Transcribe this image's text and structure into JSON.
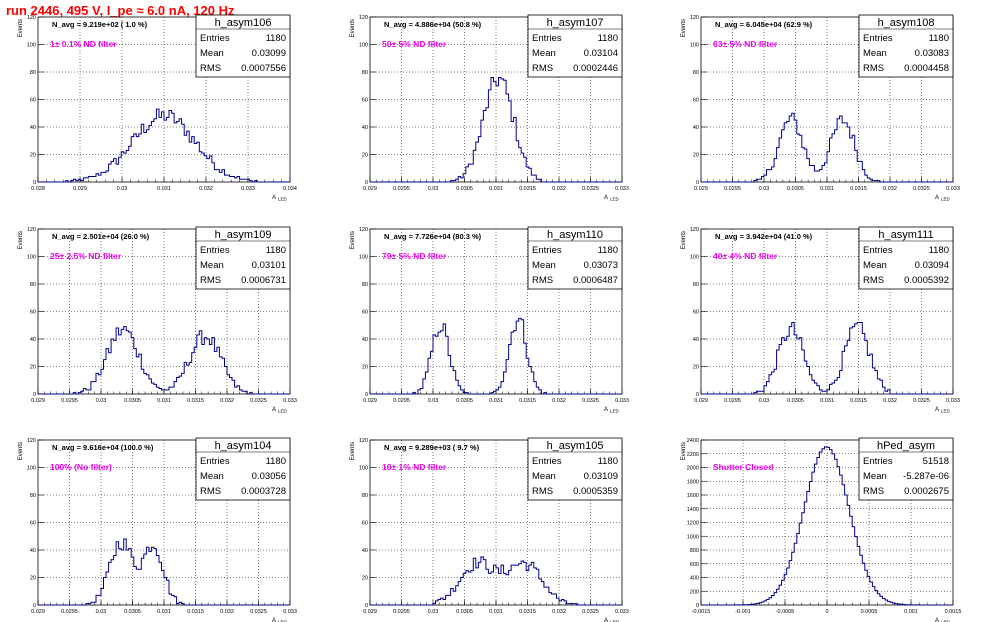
{
  "page_title": "run 2446,   495 V, I_pe ≈ 6.0 nA, 120 Hz",
  "stats_labels": {
    "entries": "Entries",
    "mean": "Mean",
    "rms": "RMS"
  },
  "y_axis_label": "Events",
  "x_axis_label": "A",
  "x_axis_label_sub": "LED",
  "colors": {
    "histogram": "#00008b",
    "filter_text": "#ee00ee",
    "title": "#ff0000"
  },
  "chart_data": [
    {
      "type": "histogram",
      "name": "h_asym106",
      "navg": "N_avg = 9.219e+02 ( 1.0 %)",
      "filter": "1± 0.1% ND filter",
      "entries": "1180",
      "mean": "0.03099",
      "rms": "0.0007556",
      "xlim": [
        0.028,
        0.034
      ],
      "ylim": [
        0,
        120
      ],
      "xticks": [
        "0.028",
        "0.029",
        "0.03",
        "0.031",
        "0.032",
        "0.033",
        "0.034"
      ],
      "yticks": [
        "0",
        "20",
        "40",
        "60",
        "80",
        "100",
        "120"
      ],
      "peaks": [
        [
          0.031,
          48,
          0.00075
        ]
      ],
      "count": 1180
    },
    {
      "type": "histogram",
      "name": "h_asym107",
      "navg": "N_avg = 4.886e+04 (50.8 %)",
      "filter": "50± 5% ND filter",
      "entries": "1180",
      "mean": "0.03104",
      "rms": "0.0002446",
      "xlim": [
        0.029,
        0.033
      ],
      "ylim": [
        0,
        120
      ],
      "xticks": [
        "0.029",
        "0.0295",
        "0.03",
        "0.0305",
        "0.031",
        "0.0315",
        "0.032",
        "0.0325",
        "0.033"
      ],
      "yticks": [
        "0",
        "20",
        "40",
        "60",
        "80",
        "100",
        "120"
      ],
      "peaks": [
        [
          0.03104,
          75,
          0.00024
        ]
      ],
      "count": 1180
    },
    {
      "type": "histogram",
      "name": "h_asym108",
      "navg": "N_avg = 6.045e+04 (62.9 %)",
      "filter": "63± 5% ND filter",
      "entries": "1180",
      "mean": "0.03083",
      "rms": "0.0004458",
      "xlim": [
        0.029,
        0.033
      ],
      "ylim": [
        0,
        120
      ],
      "xticks": [
        "0.029",
        "0.0295",
        "0.03",
        "0.0305",
        "0.031",
        "0.0315",
        "0.032",
        "0.0325",
        "0.033"
      ],
      "yticks": [
        "0",
        "20",
        "40",
        "60",
        "80",
        "100",
        "120"
      ],
      "peaks": [
        [
          0.03043,
          46,
          0.00019
        ],
        [
          0.03125,
          45,
          0.00019
        ]
      ],
      "count": 1180
    },
    {
      "type": "histogram",
      "name": "h_asym109",
      "navg": "N_avg = 2.501e+04 (26.0 %)",
      "filter": "25± 2.5% ND filter",
      "entries": "1180",
      "mean": "0.03101",
      "rms": "0.0006731",
      "xlim": [
        0.029,
        0.033
      ],
      "ylim": [
        0,
        120
      ],
      "xticks": [
        "0.029",
        "0.0295",
        "0.03",
        "0.0305",
        "0.031",
        "0.0315",
        "0.032",
        "0.0325",
        "0.033"
      ],
      "yticks": [
        "0",
        "20",
        "40",
        "60",
        "80",
        "100",
        "120"
      ],
      "peaks": [
        [
          0.03035,
          47,
          0.00025
        ],
        [
          0.03165,
          42,
          0.00025
        ]
      ],
      "count": 1180
    },
    {
      "type": "histogram",
      "name": "h_asym110",
      "navg": "N_avg = 7.726e+04 (80.3 %)",
      "filter": "79± 5% ND filter",
      "entries": "1180",
      "mean": "0.03073",
      "rms": "0.0006487",
      "xlim": [
        0.029,
        0.033
      ],
      "ylim": [
        0,
        120
      ],
      "xticks": [
        "0.029",
        "0.0295",
        "0.03",
        "0.0305",
        "0.031",
        "0.0315",
        "0.032",
        "0.0325",
        "0.033"
      ],
      "yticks": [
        "0",
        "20",
        "40",
        "60",
        "80",
        "100",
        "120"
      ],
      "peaks": [
        [
          0.03012,
          50,
          0.00014
        ],
        [
          0.03135,
          55,
          0.00014
        ]
      ],
      "count": 1180
    },
    {
      "type": "histogram",
      "name": "h_asym111",
      "navg": "N_avg = 3.942e+04 (41.0 %)",
      "filter": "40± 4% ND filter",
      "entries": "1180",
      "mean": "0.03094",
      "rms": "0.0005392",
      "xlim": [
        0.029,
        0.033
      ],
      "ylim": [
        0,
        120
      ],
      "xticks": [
        "0.029",
        "0.0295",
        "0.03",
        "0.0305",
        "0.031",
        "0.0315",
        "0.032",
        "0.0325",
        "0.033"
      ],
      "yticks": [
        "0",
        "20",
        "40",
        "60",
        "80",
        "100",
        "120"
      ],
      "peaks": [
        [
          0.03043,
          47,
          0.0002
        ],
        [
          0.03148,
          48,
          0.0002
        ]
      ],
      "count": 1180
    },
    {
      "type": "histogram",
      "name": "h_asym104",
      "navg": "N_avg = 9.616e+04 (100.0 %)",
      "filter": "100% (No filter)",
      "entries": "1180",
      "mean": "0.03056",
      "rms": "0.0003728",
      "xlim": [
        0.029,
        0.033
      ],
      "ylim": [
        0,
        120
      ],
      "xticks": [
        "0.029",
        "0.0295",
        "0.03",
        "0.0305",
        "0.031",
        "0.0315",
        "0.032",
        "0.0325",
        "0.033"
      ],
      "yticks": [
        "0",
        "20",
        "40",
        "60",
        "80",
        "100",
        "120"
      ],
      "peaks": [
        [
          0.03032,
          46,
          0.00018
        ],
        [
          0.03083,
          44,
          0.00016
        ]
      ],
      "count": 1180
    },
    {
      "type": "histogram",
      "name": "h_asym105",
      "navg": "N_avg = 9.289e+03 ( 9.7 %)",
      "filter": "10± 1% ND filter",
      "entries": "1180",
      "mean": "0.03109",
      "rms": "0.0005359",
      "xlim": [
        0.029,
        0.033
      ],
      "ylim": [
        0,
        120
      ],
      "xticks": [
        "0.029",
        "0.0295",
        "0.03",
        "0.0305",
        "0.031",
        "0.0315",
        "0.032",
        "0.0325",
        "0.033"
      ],
      "yticks": [
        "0",
        "20",
        "40",
        "60",
        "80",
        "100",
        "120"
      ],
      "peaks": [
        [
          0.0307,
          30,
          0.00028
        ],
        [
          0.03145,
          30,
          0.00028
        ]
      ],
      "count": 1180
    },
    {
      "type": "histogram",
      "name": "hPed_asym",
      "navg": "",
      "filter": "Shutter Closed",
      "entries": "51518",
      "mean": "-5.287e-06",
      "rms": "0.0002675",
      "xlim": [
        -0.0015,
        0.0015
      ],
      "ylim": [
        0,
        2400
      ],
      "xticks": [
        "-0.0015",
        "-0.001",
        "-0.0005",
        "0",
        "0.0005",
        "0.001",
        "0.0015"
      ],
      "yticks": [
        "0",
        "200",
        "400",
        "600",
        "800",
        "1000",
        "1200",
        "1400",
        "1600",
        "1800",
        "2000",
        "2200",
        "2400"
      ],
      "peaks": [
        [
          -5e-06,
          2300,
          0.00027
        ]
      ],
      "count": 51518
    }
  ]
}
